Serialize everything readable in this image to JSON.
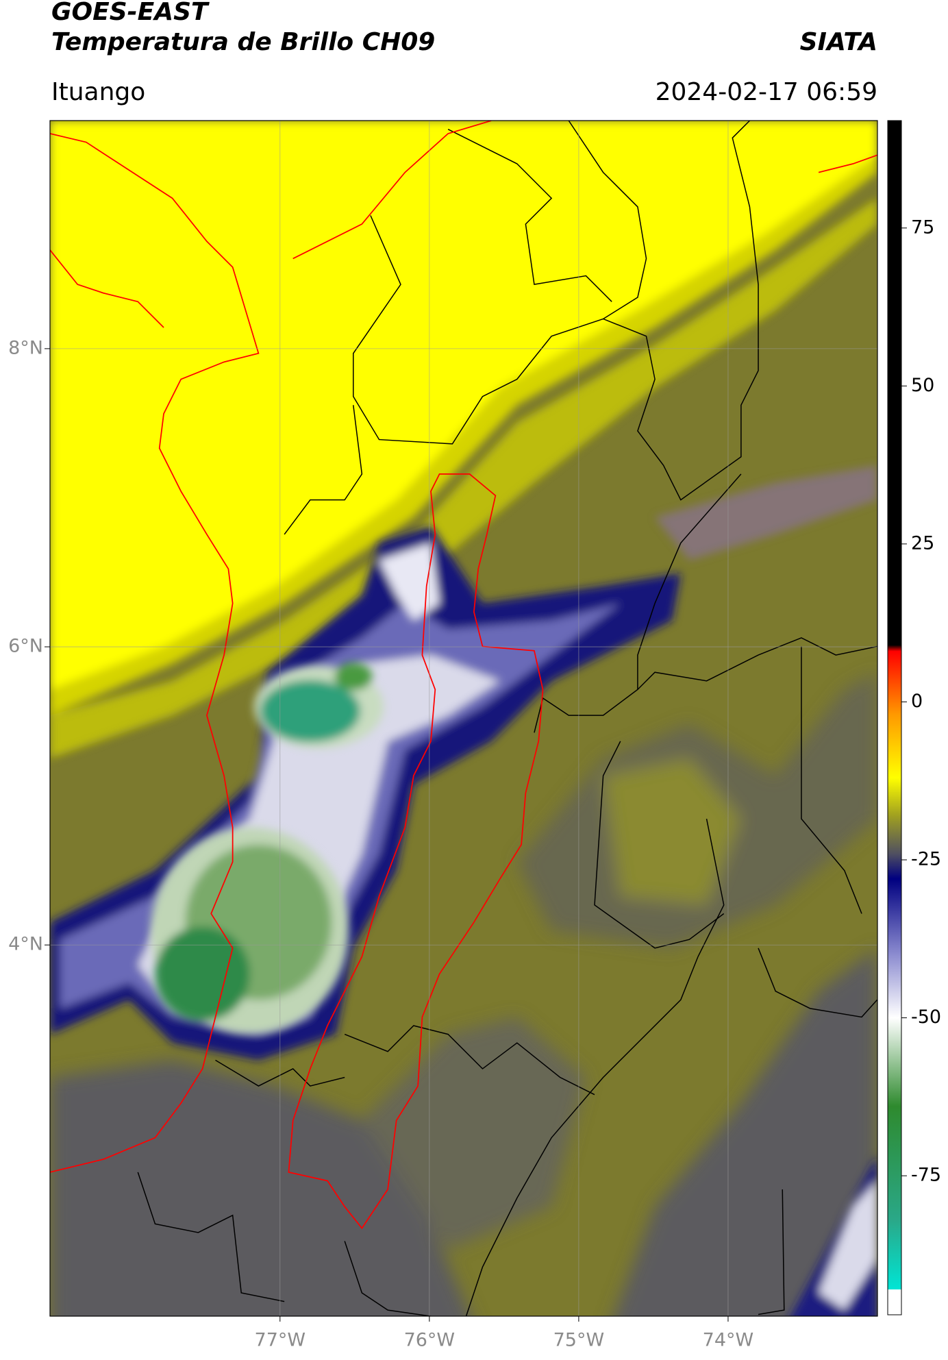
{
  "header": {
    "title": "GOES-EAST",
    "subtitle": "Temperatura de Brillo CH09",
    "source": "SIATA",
    "location": "Ituango",
    "datetime": "2024-02-17 06:59"
  },
  "chart_data": {
    "type": "map",
    "xlim": [
      -78.54,
      -73.0
    ],
    "ylim": [
      1.51,
      9.53
    ],
    "xticks": [
      {
        "value": -77,
        "label": "77°W"
      },
      {
        "value": -76,
        "label": "76°W"
      },
      {
        "value": -75,
        "label": "75°W"
      },
      {
        "value": -74,
        "label": "74°W"
      }
    ],
    "yticks": [
      {
        "value": 4,
        "label": "4°N"
      },
      {
        "value": 6,
        "label": "6°N"
      },
      {
        "value": 8,
        "label": "8°N"
      }
    ],
    "grid": true,
    "colorbar": {
      "lim": [
        -97,
        92
      ],
      "ticks": [
        -75,
        -50,
        -25,
        0,
        25,
        50,
        75
      ],
      "colors": [
        {
          "value": -97,
          "color": "#ffffff"
        },
        {
          "value": -93,
          "color": "#ffffff"
        },
        {
          "value": -93,
          "color": "#00e5d5"
        },
        {
          "value": -82,
          "color": "#2aa888"
        },
        {
          "value": -64,
          "color": "#2e8a2e"
        },
        {
          "value": -50,
          "color": "#ffffff"
        },
        {
          "value": -40,
          "color": "#8c8cd0"
        },
        {
          "value": -28,
          "color": "#000080"
        },
        {
          "value": -24,
          "color": "#505060"
        },
        {
          "value": -18,
          "color": "#a0a020"
        },
        {
          "value": -12,
          "color": "#ffff00"
        },
        {
          "value": -2,
          "color": "#ff9900"
        },
        {
          "value": 8,
          "color": "#ff0000"
        },
        {
          "value": 9,
          "color": "#000000"
        },
        {
          "value": 92,
          "color": "#000000"
        }
      ]
    }
  }
}
